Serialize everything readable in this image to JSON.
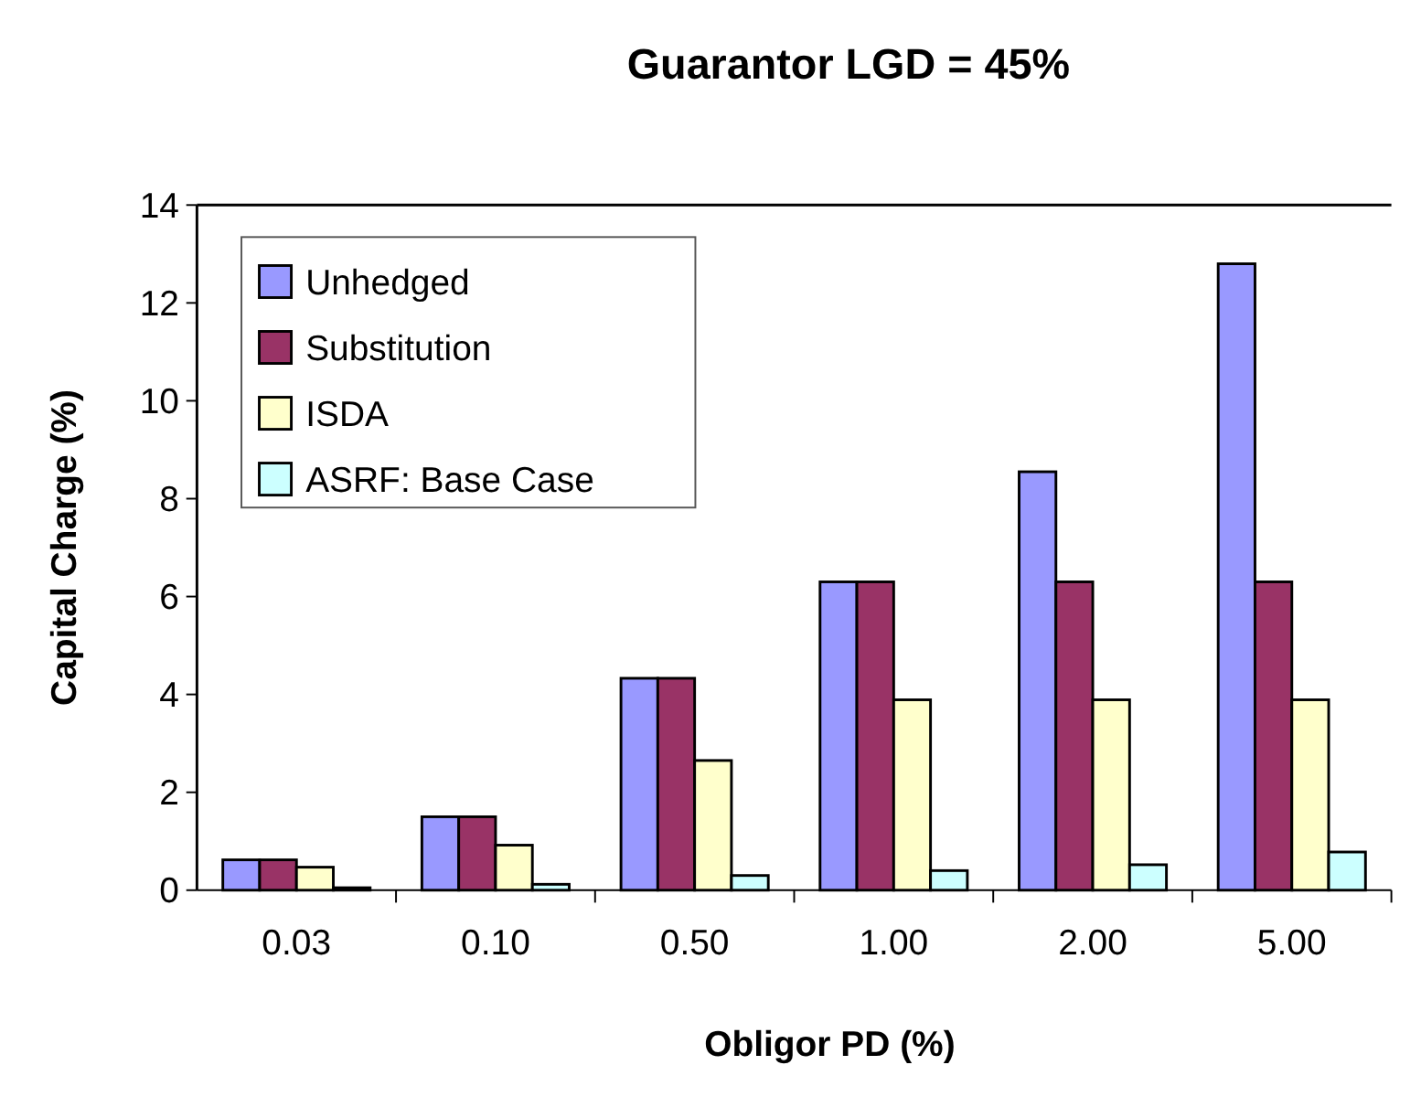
{
  "chart_data": {
    "type": "bar",
    "title": "Guarantor LGD = 45%",
    "xlabel": "Obligor PD (%)",
    "ylabel": "Capital Charge (%)",
    "categories": [
      "0.03",
      "0.10",
      "0.50",
      "1.00",
      "2.00",
      "5.00"
    ],
    "series": [
      {
        "name": "Unhedged",
        "color": "#9999ff",
        "values": [
          0.62,
          1.5,
          4.33,
          6.3,
          8.55,
          12.8
        ]
      },
      {
        "name": "Substitution",
        "color": "#993366",
        "values": [
          0.62,
          1.5,
          4.33,
          6.3,
          6.3,
          6.3
        ]
      },
      {
        "name": "ISDA",
        "color": "#ffffcc",
        "values": [
          0.47,
          0.92,
          2.65,
          3.89,
          3.89,
          3.89
        ]
      },
      {
        "name": "ASRF: Base Case",
        "color": "#ccffff",
        "values": [
          0.05,
          0.12,
          0.3,
          0.4,
          0.52,
          0.78
        ]
      }
    ],
    "ylim": [
      0,
      14
    ],
    "yticks": [
      0,
      2,
      4,
      6,
      8,
      10,
      12,
      14
    ],
    "grid": false,
    "legend": "top left"
  }
}
